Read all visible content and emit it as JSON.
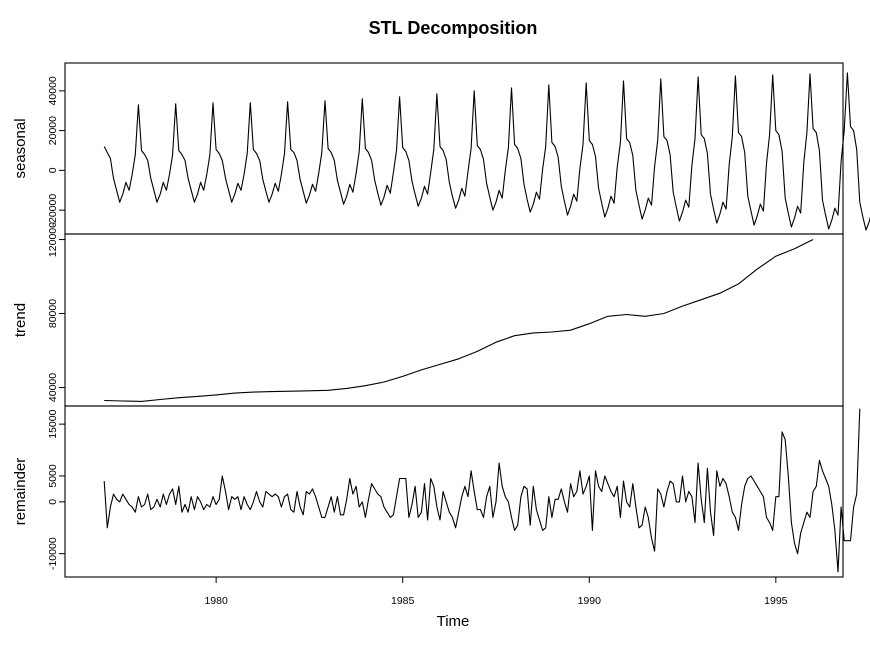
{
  "chart_data": {
    "type": "line",
    "title": "STL Decomposition",
    "xlabel": "Time",
    "x_range": [
      1977.0,
      1996.0
    ],
    "xlim": [
      1975.95,
      1996.8
    ],
    "x_ticks": [
      1980,
      1985,
      1990,
      1995
    ],
    "x_tick_labels": [
      "1980",
      "1985",
      "1990",
      "1995"
    ],
    "frequency": 12,
    "grid": false,
    "legend": "none",
    "panels": [
      {
        "name": "seasonal",
        "ylabel": "seasonal",
        "ylim": [
          -32000,
          54000
        ],
        "y_ticks": [
          -20000,
          0,
          20000,
          40000
        ],
        "y_tick_labels": [
          "-20000",
          "0",
          "20000",
          "40000"
        ],
        "values": [
          12000,
          9000,
          6000,
          -4000,
          -10000,
          -16000,
          -12000,
          -6000,
          -10000,
          -2000,
          8000,
          33000,
          10000,
          8000,
          5000,
          -4000,
          -10000,
          -16000,
          -12000,
          -6000,
          -10000,
          -2000,
          8000,
          33500,
          10000,
          8000,
          5000,
          -4000,
          -10000,
          -16000,
          -12000,
          -6000,
          -10000,
          -2000,
          8000,
          34000,
          10500,
          8500,
          5000,
          -4000,
          -10000,
          -16000,
          -12000,
          -6500,
          -10000,
          -2000,
          8500,
          34000,
          10500,
          8500,
          5000,
          -4500,
          -10500,
          -16000,
          -12000,
          -6500,
          -10500,
          -2000,
          8500,
          34500,
          10500,
          9000,
          5000,
          -4500,
          -10500,
          -16500,
          -12500,
          -7000,
          -10500,
          -1500,
          9000,
          35000,
          11000,
          9000,
          5000,
          -5000,
          -11000,
          -17000,
          -13000,
          -7000,
          -11000,
          -1500,
          9500,
          36000,
          11000,
          9000,
          5000,
          -5000,
          -11500,
          -17500,
          -13500,
          -7500,
          -11500,
          -1000,
          10000,
          37000,
          11500,
          9500,
          5000,
          -5500,
          -12000,
          -18000,
          -14000,
          -8000,
          -12000,
          -1000,
          10500,
          38500,
          12000,
          10000,
          5500,
          -6000,
          -13000,
          -19000,
          -15000,
          -9000,
          -13000,
          -500,
          11000,
          40000,
          12500,
          10500,
          5500,
          -6500,
          -13500,
          -20000,
          -16000,
          -10000,
          -14000,
          0,
          11500,
          41500,
          13000,
          11000,
          6000,
          -7000,
          -14500,
          -21000,
          -17000,
          -11000,
          -14500,
          500,
          12000,
          43000,
          14000,
          12000,
          6500,
          -8000,
          -15500,
          -22500,
          -18000,
          -12000,
          -15500,
          1000,
          13000,
          44000,
          15000,
          13000,
          7000,
          -9000,
          -16500,
          -23500,
          -19000,
          -13000,
          -16500,
          1500,
          14000,
          45000,
          16000,
          14000,
          7500,
          -10000,
          -17500,
          -24500,
          -20000,
          -14000,
          -17500,
          2000,
          15000,
          46000,
          17000,
          15000,
          8000,
          -11000,
          -18500,
          -25500,
          -21000,
          -15000,
          -18500,
          2500,
          16000,
          47000,
          18000,
          16000,
          8500,
          -12000,
          -19500,
          -26500,
          -22000,
          -16000,
          -19500,
          3000,
          17000,
          47500,
          19000,
          17000,
          9000,
          -13000,
          -20500,
          -27500,
          -23000,
          -17000,
          -20500,
          3500,
          18000,
          48000,
          20000,
          18000,
          9500,
          -14000,
          -21500,
          -28500,
          -24000,
          -18000,
          -21500,
          4000,
          19000,
          48500,
          21000,
          19000,
          10000,
          -15000,
          -22500,
          -29500,
          -25000,
          -19000,
          -22500,
          4500,
          20000,
          49000,
          22000,
          20000,
          10500,
          -16000,
          -23500,
          -30000,
          -26000,
          -20000,
          -23500,
          5000,
          21000,
          50000
        ]
      },
      {
        "name": "trend",
        "ylabel": "trend",
        "ylim": [
          30000,
          123000
        ],
        "y_ticks": [
          40000,
          80000,
          120000
        ],
        "y_tick_labels": [
          "40000",
          "80000",
          "120000"
        ],
        "knots_x": [
          1977.0,
          1977.5,
          1978.0,
          1978.5,
          1979.0,
          1979.5,
          1980.0,
          1980.5,
          1981.0,
          1981.5,
          1982.0,
          1982.5,
          1983.0,
          1983.5,
          1984.0,
          1984.5,
          1985.0,
          1985.5,
          1986.0,
          1986.5,
          1987.0,
          1987.5,
          1988.0,
          1988.5,
          1989.0,
          1989.5,
          1990.0,
          1990.5,
          1991.0,
          1991.5,
          1992.0,
          1992.5,
          1993.0,
          1993.5,
          1994.0,
          1994.5,
          1995.0,
          1995.5,
          1996.0
        ],
        "knots_y": [
          33000,
          32700,
          32500,
          33500,
          34500,
          35200,
          36000,
          37000,
          37500,
          37800,
          38000,
          38200,
          38500,
          39500,
          41000,
          43000,
          46000,
          49500,
          52500,
          55500,
          59500,
          64500,
          68000,
          69500,
          70000,
          71000,
          74500,
          78500,
          79500,
          78500,
          80000,
          84000,
          87500,
          91000,
          96000,
          104000,
          111000,
          115000,
          120000
        ]
      },
      {
        "name": "remainder",
        "ylabel": "remainder",
        "ylim": [
          -14500,
          18500
        ],
        "y_ticks": [
          -10000,
          0,
          5000,
          15000
        ],
        "y_tick_labels": [
          "-10000",
          "0",
          "5000",
          "15000"
        ],
        "values": [
          4000,
          -5000,
          -1000,
          1500,
          500,
          0,
          1500,
          500,
          -500,
          -1000,
          -2000,
          1000,
          -1000,
          -500,
          1500,
          -1500,
          -1000,
          500,
          -1000,
          1500,
          -500,
          1500,
          2500,
          -500,
          3000,
          -2000,
          -500,
          -2000,
          1000,
          -1500,
          1000,
          0,
          -1500,
          -500,
          -1000,
          1000,
          -500,
          500,
          5000,
          2000,
          -1500,
          1000,
          500,
          1000,
          -1500,
          1000,
          -500,
          -1500,
          0,
          2000,
          0,
          -1000,
          2000,
          1500,
          1000,
          1500,
          1000,
          -1000,
          1000,
          1500,
          -1500,
          -2000,
          2000,
          -1000,
          -2500,
          2000,
          1500,
          2500,
          1000,
          -1000,
          -3000,
          -3000,
          -1000,
          1000,
          -2000,
          1000,
          -2500,
          -2500,
          500,
          4500,
          1500,
          3000,
          -1000,
          0,
          -3000,
          500,
          3500,
          2500,
          1500,
          1000,
          -1000,
          -2000,
          -3000,
          -2500,
          1000,
          4500,
          4500,
          4500,
          -3000,
          -500,
          3000,
          -3000,
          -2000,
          3500,
          -3500,
          4500,
          3000,
          -1000,
          -3500,
          2000,
          0,
          -2000,
          -3000,
          -5000,
          -2000,
          1000,
          3000,
          1000,
          6000,
          2000,
          -1500,
          -1500,
          -3000,
          1000,
          3000,
          -3000,
          0,
          7500,
          3000,
          1000,
          0,
          -3000,
          -5500,
          -4500,
          1000,
          3000,
          2500,
          -4500,
          3000,
          -1500,
          -3500,
          -5500,
          -5000,
          1000,
          -3000,
          500,
          500,
          2500,
          0,
          -2000,
          3500,
          1000,
          2000,
          6000,
          1500,
          3000,
          5000,
          -5500,
          6000,
          3000,
          2000,
          5000,
          3500,
          2000,
          1000,
          3000,
          -3000,
          4000,
          0,
          -1000,
          3500,
          -1000,
          -5000,
          -4500,
          -1000,
          -3000,
          -7000,
          -9500,
          2500,
          1500,
          -1000,
          2000,
          4000,
          3500,
          0,
          0,
          5000,
          0,
          2000,
          1000,
          -4000,
          7500,
          500,
          -4000,
          6500,
          -2000,
          -6500,
          6000,
          3000,
          4500,
          3500,
          1000,
          -2000,
          -3000,
          -5500,
          -500,
          3000,
          4500,
          5000,
          4000,
          3000,
          2000,
          1000,
          -3000,
          -4000,
          -5500,
          1000,
          1000,
          13500,
          12000,
          5000,
          -4000,
          -8000,
          -10000,
          -6000,
          -4000,
          -2000,
          -3000,
          2000,
          3000,
          8000,
          6000,
          4500,
          3000,
          -500,
          -5500,
          -13500,
          -1000,
          -7500,
          -7500,
          -7500,
          -1000,
          1500,
          18000
        ]
      }
    ]
  }
}
